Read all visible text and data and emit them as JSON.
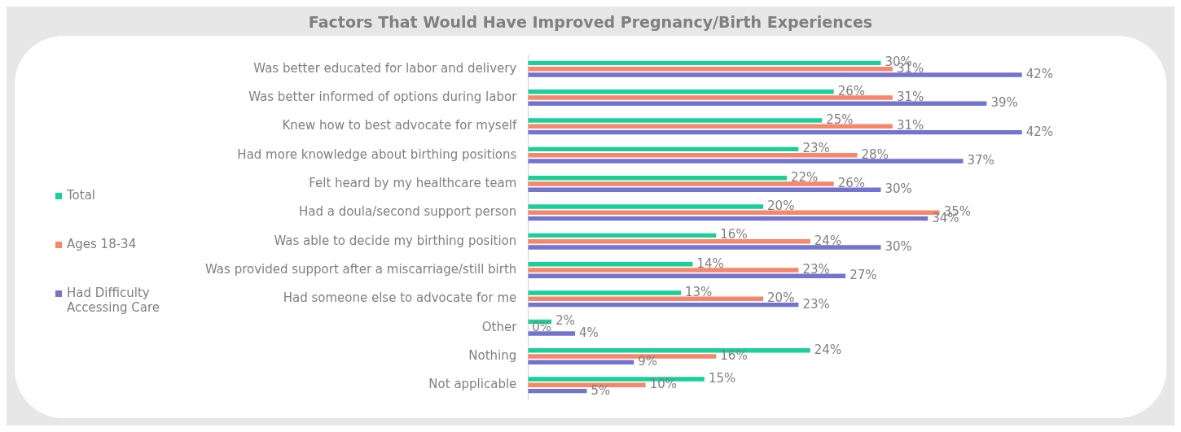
{
  "chart_data": {
    "type": "bar",
    "orientation": "horizontal",
    "title": "Factors That Would Have Improved Pregnancy/Birth Experiences",
    "categories": [
      "Was better educated for labor and delivery",
      "Was better informed of options during labor",
      "Knew how to best advocate for myself",
      "Had more knowledge about birthing positions",
      "Felt heard by my healthcare team",
      "Had a doula/second support person",
      "Was able to decide my birthing position",
      "Was provided support after a miscarriage/still birth",
      "Had someone else to advocate for me",
      "Other",
      "Nothing",
      "Not applicable"
    ],
    "series": [
      {
        "name": "Total",
        "color": "#19cf9a",
        "values": [
          30,
          26,
          25,
          23,
          22,
          20,
          16,
          14,
          13,
          2,
          24,
          15
        ],
        "value_labels": [
          "30%",
          "26%",
          "25%",
          "23%",
          "22%",
          "20%",
          "16%",
          "14%",
          "13%",
          "2%",
          "24%",
          "15%"
        ]
      },
      {
        "name": "Ages 18-34",
        "color": "#f8866a",
        "values": [
          31,
          31,
          31,
          28,
          26,
          35,
          24,
          23,
          20,
          0,
          16,
          10
        ],
        "value_labels": [
          "31%",
          "31%",
          "31%",
          "28%",
          "26%",
          "35%",
          "24%",
          "23%",
          "20%",
          "0%",
          "16%",
          "10%"
        ]
      },
      {
        "name": "Had Difficulty Accessing Care",
        "color": "#7373d0",
        "values": [
          42,
          39,
          42,
          37,
          30,
          34,
          30,
          27,
          23,
          4,
          9,
          5
        ],
        "value_labels": [
          "42%",
          "39%",
          "42%",
          "37%",
          "30%",
          "34%",
          "30%",
          "27%",
          "23%",
          "4%",
          "9%",
          "5%"
        ]
      }
    ],
    "legend": "left",
    "grid": false
  }
}
